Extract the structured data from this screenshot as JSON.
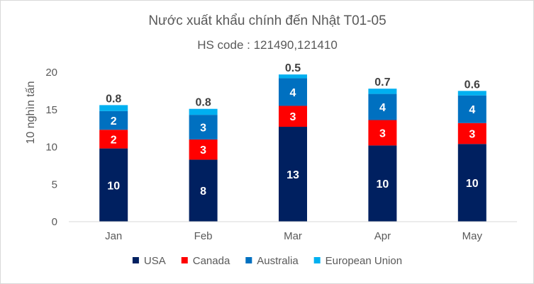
{
  "chart_data": {
    "type": "bar",
    "stacked": true,
    "title": "Nước xuất khẩu chính đến Nhật T01-05",
    "subtitle": "HS code : 121490,121410",
    "ylabel": "10 nghìn tấn",
    "ylim": [
      0,
      20
    ],
    "yticks": [
      "0",
      "5",
      "10",
      "15",
      "20"
    ],
    "categories": [
      "Jan",
      "Feb",
      "Mar",
      "Apr",
      "May"
    ],
    "legend_position": "bottom",
    "grid": false,
    "series": [
      {
        "name": "USA",
        "color": "#002060",
        "values": [
          9.8,
          8.3,
          12.7,
          10.2,
          10.4
        ],
        "labels": [
          "10",
          "8",
          "13",
          "10",
          "10"
        ]
      },
      {
        "name": "Canada",
        "color": "#ff0000",
        "values": [
          2.5,
          2.7,
          2.8,
          3.4,
          2.8
        ],
        "labels": [
          "2",
          "3",
          "3",
          "3",
          "3"
        ]
      },
      {
        "name": "Australia",
        "color": "#0070c0",
        "values": [
          2.5,
          3.3,
          3.7,
          3.5,
          3.7
        ],
        "labels": [
          "2",
          "3",
          "4",
          "4",
          "4"
        ]
      },
      {
        "name": "European Union",
        "color": "#00b0f0",
        "values": [
          0.8,
          0.8,
          0.5,
          0.7,
          0.6
        ],
        "labels": [
          "0.8",
          "0.8",
          "0.5",
          "0.7",
          "0.6"
        ]
      }
    ]
  }
}
